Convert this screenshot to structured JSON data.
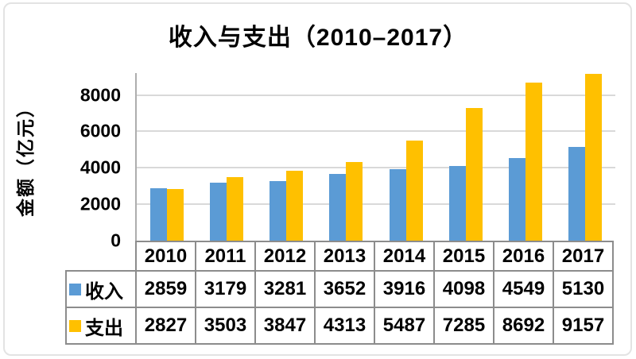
{
  "chart_data": {
    "type": "bar",
    "title": "收入与支出（2010–2017）",
    "ylabel": "金额（亿元）",
    "xlabel": "",
    "categories": [
      "2010",
      "2011",
      "2012",
      "2013",
      "2014",
      "2015",
      "2016",
      "2017"
    ],
    "series": [
      {
        "name": "收入",
        "color": "#5b9bd5",
        "values": [
          2859,
          3179,
          3281,
          3652,
          3916,
          4098,
          4549,
          5130
        ]
      },
      {
        "name": "支出",
        "color": "#ffc000",
        "values": [
          2827,
          3503,
          3847,
          4313,
          5487,
          7285,
          8692,
          9157
        ]
      }
    ],
    "yticks": [
      0,
      2000,
      4000,
      6000,
      8000
    ],
    "ylim": [
      0,
      9200
    ],
    "grid": true,
    "gridline_color": "#d9d9d9",
    "axis_color": "#aeaeae",
    "table_border_color": "#8c8c8c",
    "legend_position": "table-left",
    "data_table_shown": true
  }
}
